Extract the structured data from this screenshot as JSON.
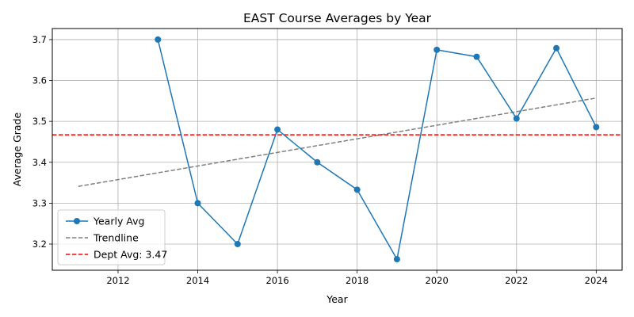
{
  "chart_data": {
    "type": "line",
    "title": "EAST Course Averages by Year",
    "xlabel": "Year",
    "ylabel": "Average Grade",
    "xlim": [
      2010.35,
      2024.65
    ],
    "ylim": [
      3.136,
      3.727
    ],
    "grid": true,
    "legend_position": "lower-left",
    "x_ticks": [
      "2012",
      "2014",
      "2016",
      "2018",
      "2020",
      "2022",
      "2024"
    ],
    "y_ticks": [
      "3.2",
      "3.3",
      "3.4",
      "3.5",
      "3.6",
      "3.7"
    ],
    "series": [
      {
        "name": "Yearly Avg",
        "style": "line-with-markers",
        "color": "#1f77b4",
        "x": [
          2013,
          2014,
          2015,
          2016,
          2017,
          2018,
          2019,
          2020,
          2021,
          2022,
          2023,
          2024
        ],
        "values": [
          3.7,
          3.3,
          3.2,
          3.48,
          3.4,
          3.333,
          3.163,
          3.675,
          3.658,
          3.507,
          3.679,
          3.486
        ]
      },
      {
        "name": "Trendline",
        "style": "dashed",
        "color": "#808080",
        "x": [
          2011,
          2024
        ],
        "values": [
          3.341,
          3.557
        ]
      },
      {
        "name": "Dept Avg: 3.47",
        "style": "dashed-horizontal",
        "color": "#ff0000",
        "y": 3.467
      }
    ]
  }
}
